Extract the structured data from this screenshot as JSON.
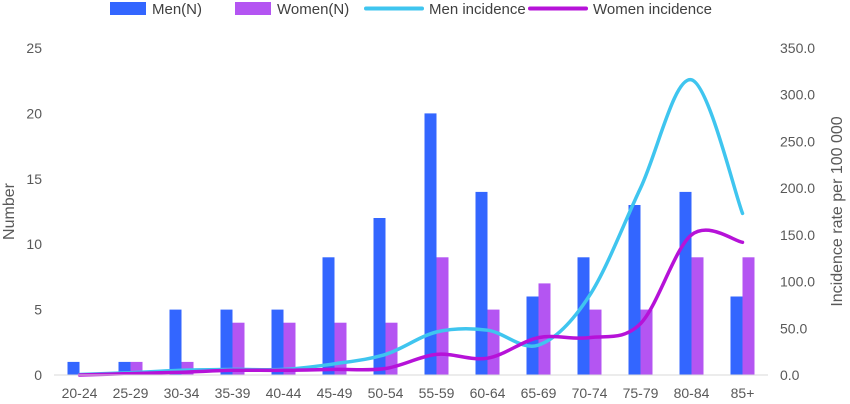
{
  "chart_data": {
    "type": "bar",
    "title": "",
    "categories": [
      "20-24",
      "25-29",
      "30-34",
      "35-39",
      "40-44",
      "45-49",
      "50-54",
      "55-59",
      "60-64",
      "65-69",
      "70-74",
      "75-79",
      "80-84",
      "85+"
    ],
    "series": [
      {
        "name": "Men(N)",
        "kind": "bar",
        "axis": "left",
        "color": "#3366ff",
        "values": [
          1,
          1,
          5,
          5,
          5,
          9,
          12,
          20,
          14,
          6,
          9,
          13,
          14,
          6
        ]
      },
      {
        "name": "Women(N)",
        "kind": "bar",
        "axis": "left",
        "color": "#b455f2",
        "values": [
          0,
          1,
          1,
          4,
          4,
          4,
          4,
          9,
          5,
          7,
          5,
          5,
          9,
          9
        ]
      },
      {
        "name": "Men incidence",
        "kind": "line",
        "axis": "right",
        "color": "#3fc5ef",
        "values": [
          0.5,
          2.5,
          5,
          6,
          6,
          12,
          22,
          46,
          48,
          32,
          85,
          200,
          316,
          173
        ]
      },
      {
        "name": "Women incidence",
        "kind": "line",
        "axis": "right",
        "color": "#b612d8",
        "values": [
          0,
          1.5,
          3,
          5,
          5,
          6,
          7,
          22,
          18,
          40,
          40,
          55,
          150,
          142
        ]
      }
    ],
    "ylabel": "Number",
    "ylabel_right": "Incidence rate per 100 000",
    "ylim": [
      0,
      25
    ],
    "ylim_right": [
      0,
      350
    ],
    "yticks": [
      "0",
      "5",
      "10",
      "15",
      "20",
      "25"
    ],
    "yticks_right": [
      "0.0",
      "50.0",
      "100.0",
      "150.0",
      "200.0",
      "250.0",
      "300.0",
      "350.0"
    ],
    "legend_position": "top",
    "grid": false
  }
}
